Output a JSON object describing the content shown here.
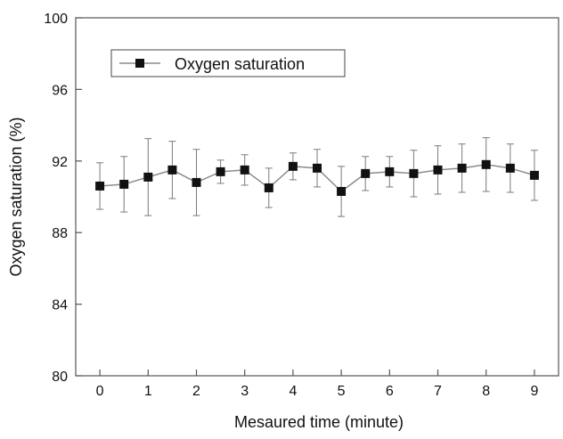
{
  "chart_data": {
    "type": "line",
    "xlabel": "Mesaured time (minute)",
    "ylabel": "Oxygen saturation (%)",
    "xlim": [
      -0.5,
      9.5
    ],
    "ylim": [
      80,
      100
    ],
    "x_ticks": [
      0,
      1,
      2,
      3,
      4,
      5,
      6,
      7,
      8,
      9
    ],
    "x_tick_labels": [
      "0",
      "1",
      "2",
      "3",
      "4",
      "5",
      "6",
      "7",
      "8",
      "9"
    ],
    "y_ticks": [
      80,
      84,
      88,
      92,
      96,
      100
    ],
    "y_tick_labels": [
      "80",
      "84",
      "88",
      "92",
      "96",
      "100"
    ],
    "legend_placement": "top-left",
    "grid": false,
    "series": [
      {
        "name": "Oxygen saturation",
        "marker": "square",
        "line_color": "#8c8c8c",
        "marker_color": "#111111",
        "error_color": "#7a7a7a",
        "x": [
          0,
          0.5,
          1,
          1.5,
          2,
          2.5,
          3,
          3.5,
          4,
          4.5,
          5,
          5.5,
          6,
          6.5,
          7,
          7.5,
          8,
          8.5,
          9
        ],
        "y": [
          90.6,
          90.7,
          91.1,
          91.5,
          90.8,
          91.4,
          91.5,
          90.5,
          91.7,
          91.6,
          90.3,
          91.3,
          91.4,
          91.3,
          91.5,
          91.6,
          91.8,
          91.6,
          91.2
        ],
        "error": [
          1.3,
          1.55,
          2.15,
          1.6,
          1.85,
          0.65,
          0.85,
          1.1,
          0.75,
          1.05,
          1.4,
          0.95,
          0.85,
          1.3,
          1.35,
          1.35,
          1.5,
          1.35,
          1.4
        ]
      }
    ]
  }
}
